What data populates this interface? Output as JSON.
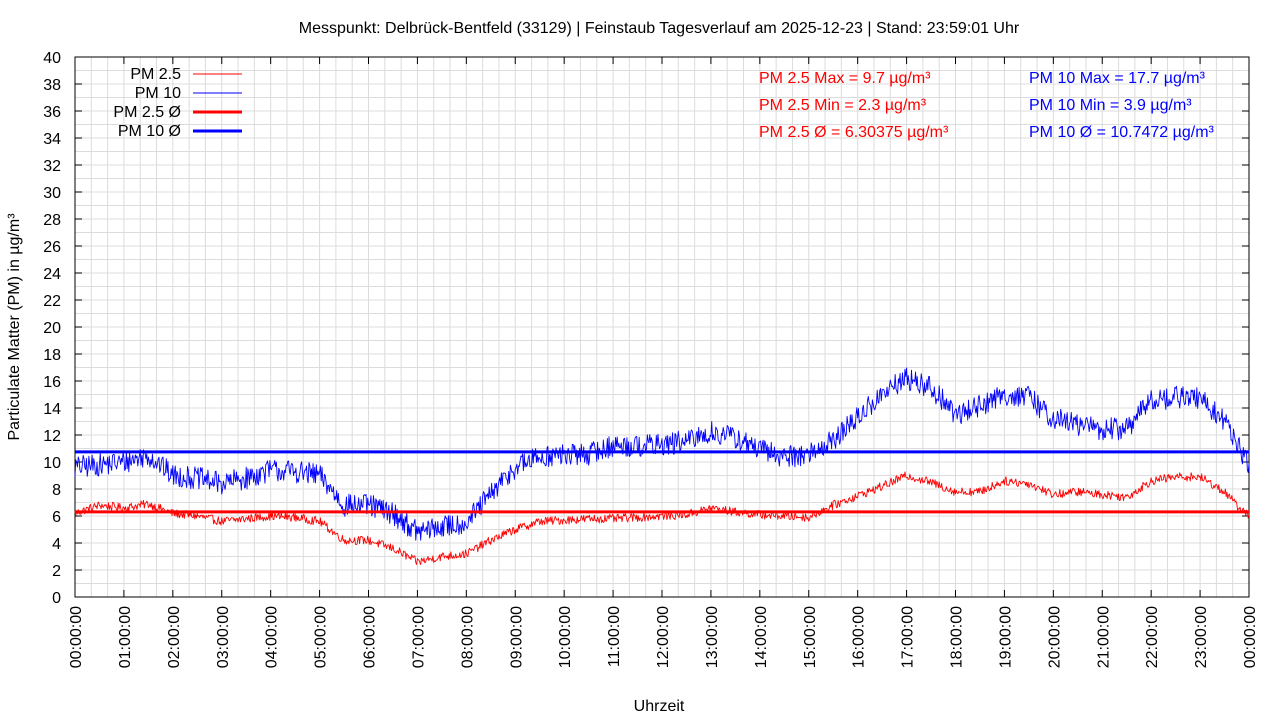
{
  "chart_data": {
    "type": "line",
    "title": "Messpunkt: Delbrück-Bentfeld (33129) | Feinstaub Tagesverlauf am 2025-12-23 | Stand: 23:59:01 Uhr",
    "xlabel": "Uhrzeit",
    "ylabel": "Particulate Matter (PM) in µg/m³",
    "xlim": [
      "00:00:00",
      "24:00:00"
    ],
    "ylim": [
      0,
      40
    ],
    "yticks": [
      0,
      2,
      4,
      6,
      8,
      10,
      12,
      14,
      16,
      18,
      20,
      22,
      24,
      26,
      28,
      30,
      32,
      34,
      36,
      38,
      40
    ],
    "xtick_labels": [
      "00:00:00",
      "01:00:00",
      "02:00:00",
      "03:00:00",
      "04:00:00",
      "05:00:00",
      "06:00:00",
      "07:00:00",
      "08:00:00",
      "09:00:00",
      "10:00:00",
      "11:00:00",
      "12:00:00",
      "13:00:00",
      "14:00:00",
      "15:00:00",
      "16:00:00",
      "17:00:00",
      "18:00:00",
      "19:00:00",
      "20:00:00",
      "21:00:00",
      "22:00:00",
      "23:00:00",
      "00:00:00"
    ],
    "grid": true,
    "legend_position": "top-left",
    "x_hours": [
      0,
      0.5,
      1,
      1.5,
      2,
      2.5,
      3,
      3.5,
      4,
      4.5,
      5,
      5.5,
      6,
      6.5,
      7,
      7.5,
      8,
      8.5,
      9,
      9.5,
      10,
      10.5,
      11,
      11.5,
      12,
      12.5,
      13,
      13.5,
      14,
      14.5,
      15,
      15.5,
      16,
      16.5,
      17,
      17.5,
      18,
      18.5,
      19,
      19.5,
      20,
      20.5,
      21,
      21.5,
      22,
      22.5,
      23,
      23.5,
      23.75,
      24
    ],
    "series": [
      {
        "name": "PM 2.5",
        "color": "#ff0000",
        "style": "thin",
        "values": [
          6.2,
          6.8,
          6.6,
          6.9,
          6.2,
          6.0,
          5.6,
          5.8,
          6.0,
          5.9,
          5.6,
          4.2,
          4.2,
          3.6,
          2.6,
          3.0,
          3.2,
          4.2,
          5.0,
          5.6,
          5.7,
          5.8,
          5.8,
          5.9,
          6.0,
          6.1,
          6.6,
          6.3,
          6.1,
          6.0,
          5.9,
          6.8,
          7.5,
          8.2,
          9.0,
          8.5,
          7.8,
          7.8,
          8.6,
          8.4,
          7.6,
          7.8,
          7.6,
          7.4,
          8.6,
          8.9,
          8.9,
          7.8,
          6.8,
          6.0
        ]
      },
      {
        "name": "PM 10",
        "color": "#0000ff",
        "style": "thin",
        "values": [
          9.6,
          9.8,
          10.0,
          10.5,
          9.0,
          8.8,
          8.4,
          8.8,
          9.4,
          9.3,
          9.0,
          6.8,
          6.8,
          6.2,
          4.8,
          5.2,
          5.5,
          7.6,
          9.6,
          10.4,
          10.5,
          10.6,
          11.2,
          11.2,
          11.3,
          11.5,
          12.2,
          11.8,
          10.9,
          10.4,
          10.6,
          11.6,
          13.3,
          15.0,
          16.2,
          15.5,
          13.5,
          14.2,
          15.0,
          14.8,
          13.2,
          12.8,
          12.4,
          12.5,
          14.6,
          14.8,
          14.7,
          13.0,
          11.5,
          9.6
        ]
      },
      {
        "name": "PM 2.5 Ø",
        "color": "#ff0000",
        "style": "thick",
        "mean": 6.30375
      },
      {
        "name": "PM 10 Ø",
        "color": "#0000ff",
        "style": "thick",
        "mean": 10.7472
      }
    ],
    "annotations": [
      {
        "text": "PM 2.5 Max = 9.7 µg/m³",
        "color": "#ff0000"
      },
      {
        "text": "PM 2.5 Min = 2.3 µg/m³",
        "color": "#ff0000"
      },
      {
        "text": "PM 2.5 Ø = 6.30375 µg/m³",
        "color": "#ff0000"
      },
      {
        "text": "PM 10 Max = 17.7 µg/m³",
        "color": "#0000ff"
      },
      {
        "text": "PM 10 Min = 3.9 µg/m³",
        "color": "#0000ff"
      },
      {
        "text": "PM 10 Ø = 10.7472 µg/m³",
        "color": "#0000ff"
      }
    ]
  }
}
